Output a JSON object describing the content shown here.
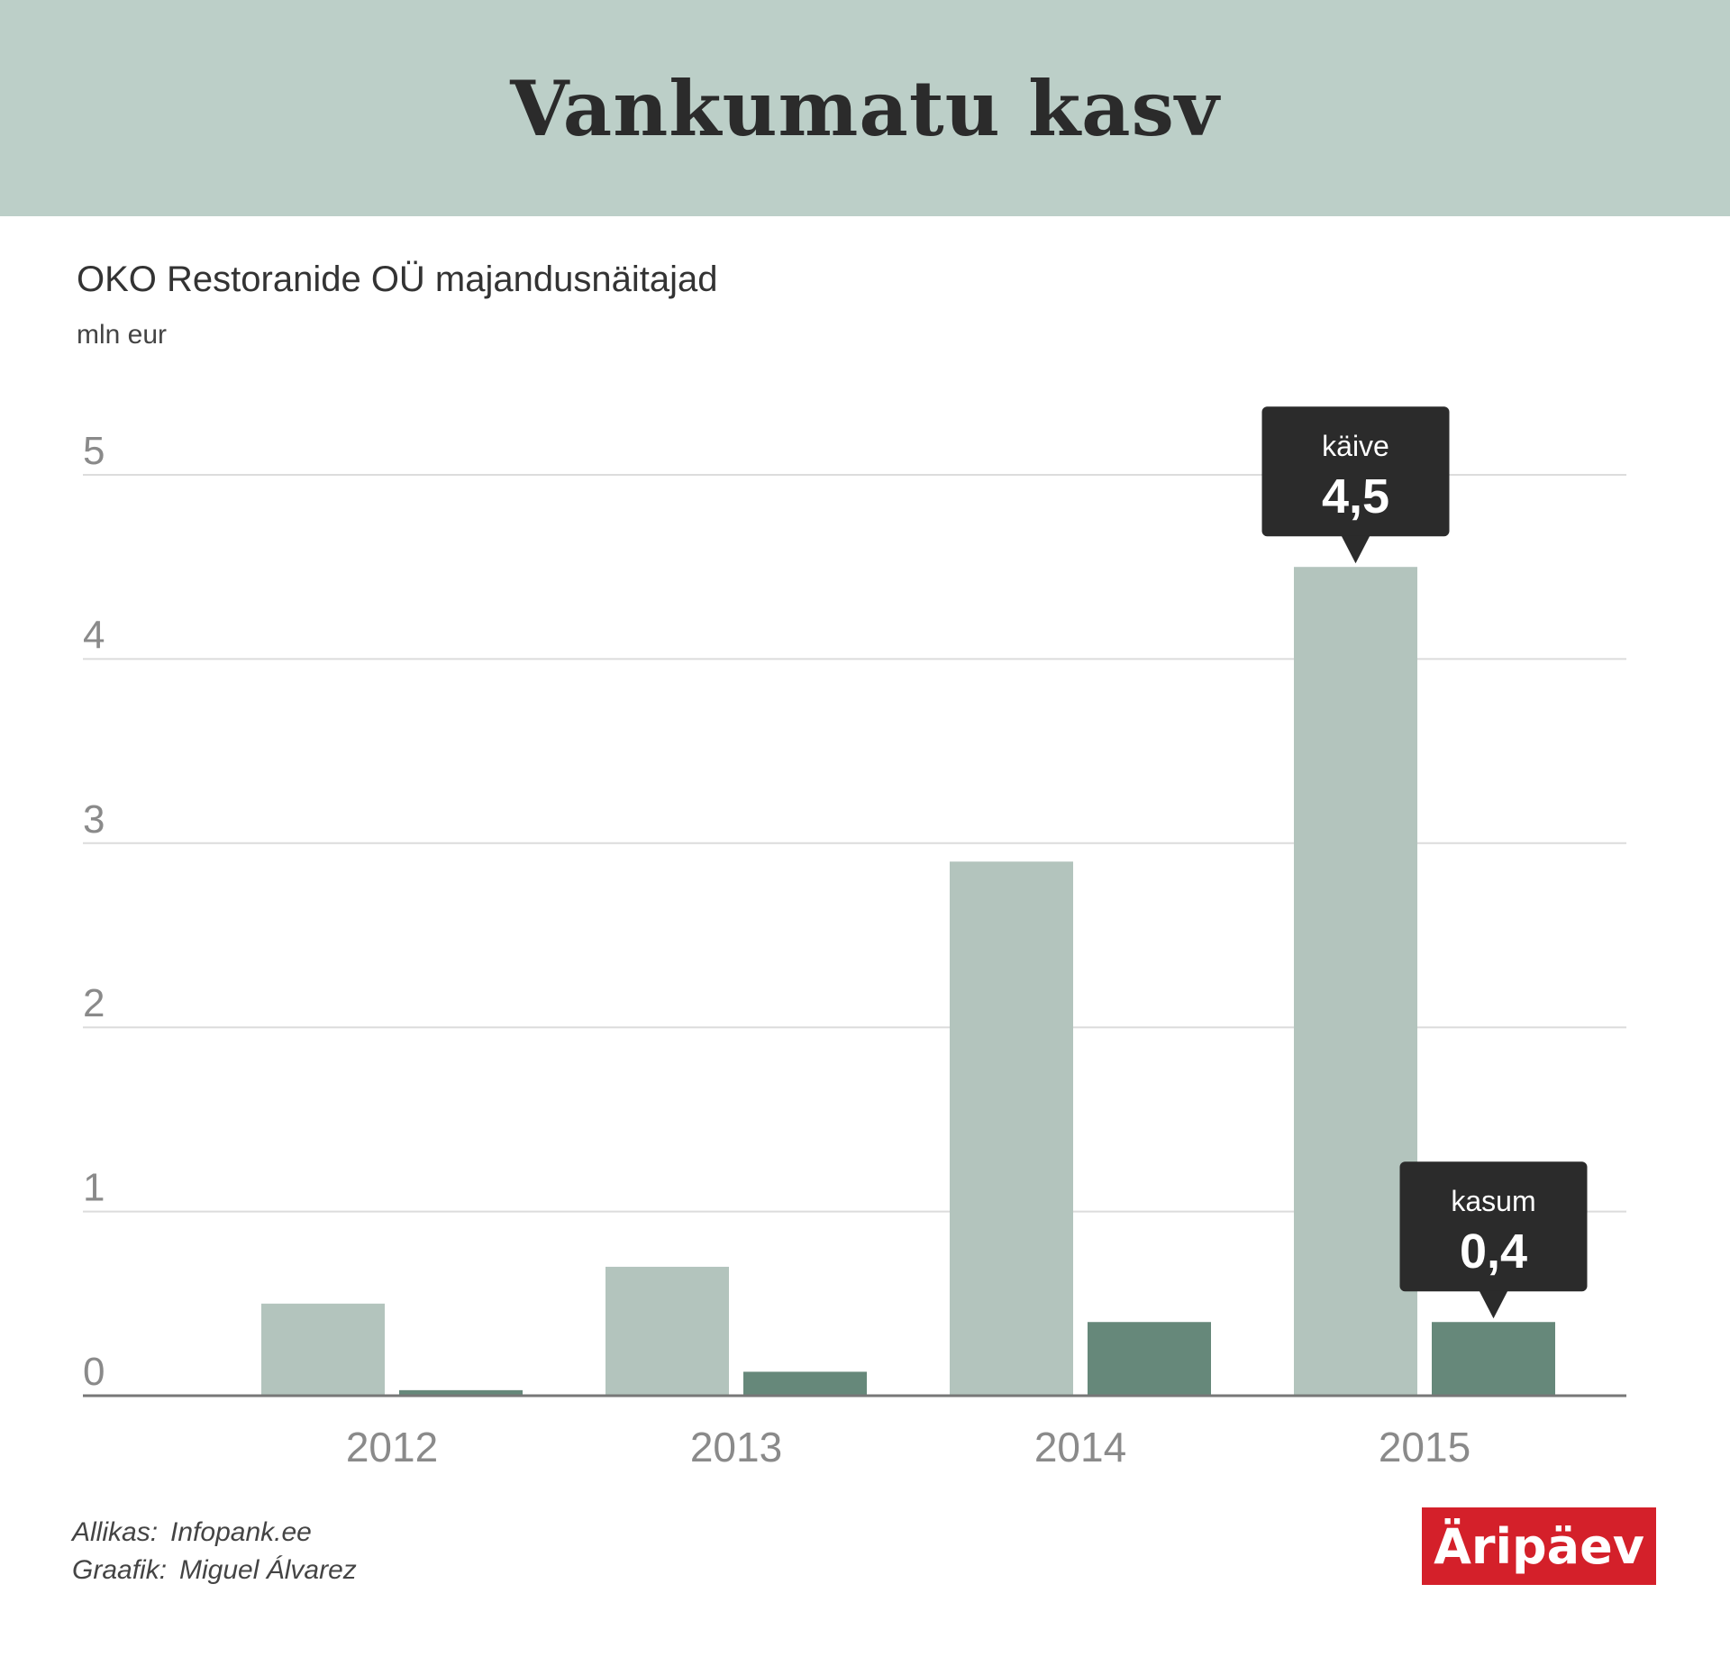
{
  "header": {
    "title": "Vankumatu kasv"
  },
  "subtitle": "OKO Restoranide OÜ majandusnäitajad",
  "unit": "mln eur",
  "chart_data": {
    "type": "bar",
    "categories": [
      "2012",
      "2013",
      "2014",
      "2015"
    ],
    "series": [
      {
        "name": "käive",
        "values": [
          0.5,
          0.7,
          2.9,
          4.5
        ],
        "color": "#b3c4bd"
      },
      {
        "name": "kasum",
        "values": [
          0.03,
          0.13,
          0.4,
          0.4
        ],
        "color": "#66887a"
      }
    ],
    "ylim": [
      0,
      5
    ],
    "yticks": [
      "0",
      "1",
      "2",
      "3",
      "4",
      "5"
    ],
    "grid": true,
    "callouts": [
      {
        "series": "käive",
        "label": "käive",
        "value_text": "4,5",
        "category": "2015"
      },
      {
        "series": "kasum",
        "label": "kasum",
        "value_text": "0,4",
        "category": "2015"
      }
    ]
  },
  "footer": {
    "source_label": "Allikas:",
    "source_value": "Infopank.ee",
    "graphic_label": "Graafik:",
    "graphic_value": "Miguel Álvarez"
  },
  "logo": {
    "text": "Äripäev"
  }
}
